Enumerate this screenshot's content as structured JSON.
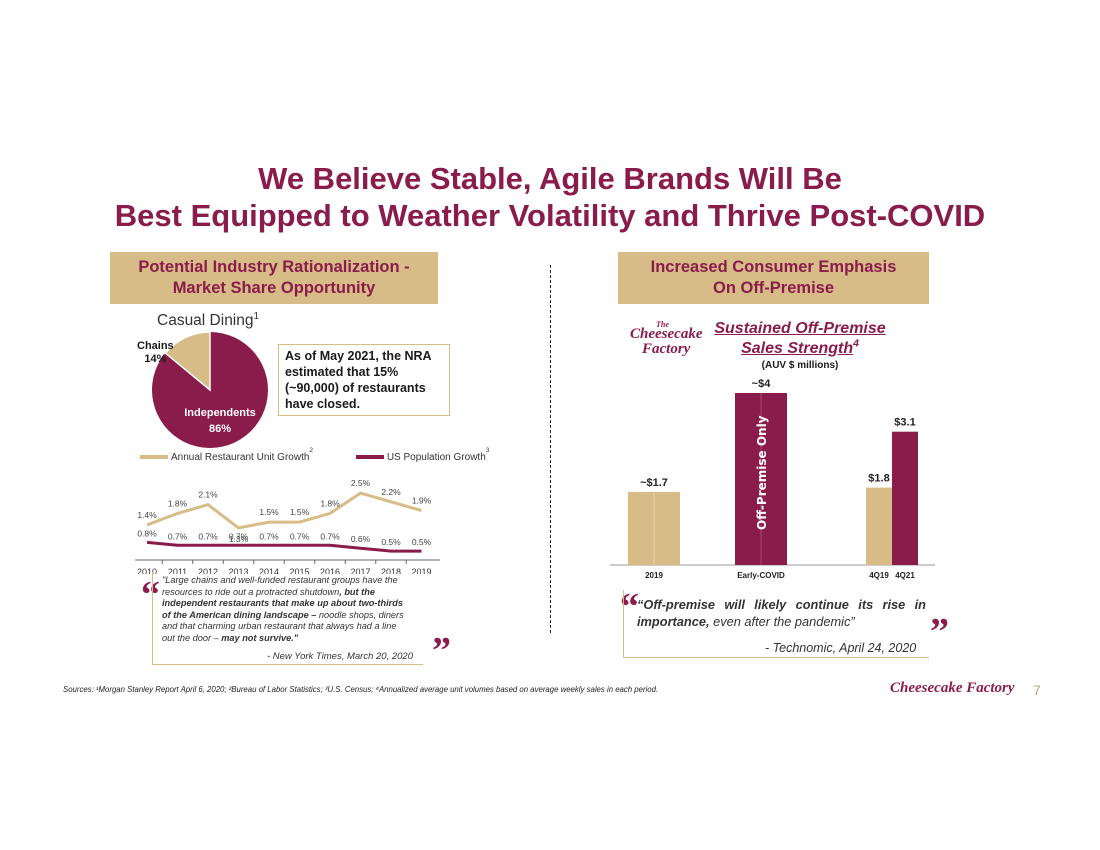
{
  "title_line1": "We Believe Stable, Agile Brands Will Be",
  "title_line2": "Best Equipped to Weather Volatility and Thrive Post-COVID",
  "left": {
    "banner_line1": "Potential Industry Rationalization -",
    "banner_line2": "Market Share Opportunity",
    "pie_title": "Casual Dining",
    "pie_title_sup": "1",
    "pie_label_chains": "Chains",
    "pie_label_chains_pct": "14%",
    "pie_label_independents": "Independents",
    "pie_label_independents_pct": "86%",
    "nra_text_line1": "As of May 2021, the NRA",
    "nra_text_line2": "estimated that 15%",
    "nra_text_line3": "(~90,000) of restaurants",
    "nra_text_line4": "have closed.",
    "legend1": "Annual Restaurant Unit Growth",
    "legend1_sup": "2",
    "legend2": "US Population Growth",
    "legend2_sup": "3",
    "quote_l1": "\"Large chains and well-funded restaurant groups have the",
    "quote_l2": "resources to ride out a protracted shutdown",
    "quote_l2b": ", but the",
    "quote_l3": "independent restaurants that make up about two-thirds",
    "quote_l4": "of the American dining landscape –",
    "quote_l4b": " noodle shops, diners",
    "quote_l5": "and that charming urban restaurant that always had a line",
    "quote_l6": "out the door –",
    "quote_l6b": " may not survive.\"",
    "quote_source": "- New York Times, March 20, 2020"
  },
  "right": {
    "banner_line1": "Increased Consumer Emphasis",
    "banner_line2": "On Off-Premise",
    "chart_title_line1": "Sustained Off-Premise",
    "chart_title_line2": "Sales Strength",
    "chart_title_sup": "4",
    "chart_subtitle": "(AUV $ millions)",
    "off_premise_label": "Off-Premise Only",
    "quote_l1a": "“Off-premise will likely continue its rise in",
    "quote_l2a": "importance,",
    "quote_l2b": " even after the pandemic”",
    "quote_source": "- Technomic, April 24, 2020"
  },
  "logo_top": "Cheesecake",
  "logo_bottom": "Factory",
  "logo_the": "The",
  "footer_logo": "Cheesecake Factory",
  "page_number": "7",
  "sources": "Sources: ¹Morgan Stanley Report April 6, 2020; ²Bureau of Labor Statistics; ³U.S. Census; ⁴Annualized average unit volumes based on average weekly sales in each period.",
  "colors": {
    "maroon": "#8a1c4c",
    "tan": "#d7bc87"
  },
  "chart_data": [
    {
      "type": "pie",
      "title": "Casual Dining",
      "categories": [
        "Chains",
        "Independents"
      ],
      "values": [
        14,
        86
      ]
    },
    {
      "type": "line",
      "categories": [
        "2010",
        "2011",
        "2012",
        "2013",
        "2014",
        "2015",
        "2016",
        "2017",
        "2018",
        "2019"
      ],
      "series": [
        {
          "name": "Annual Restaurant Unit Growth",
          "values": [
            1.4,
            1.8,
            2.1,
            1.3,
            1.5,
            1.5,
            1.8,
            2.5,
            2.2,
            1.9
          ],
          "labels": [
            "1.4%",
            "1.8%",
            "2.1%",
            "1.3%",
            "1.5%",
            "1.5%",
            "1.8%",
            "2.5%",
            "2.2%",
            "1.9%"
          ]
        },
        {
          "name": "US Population Growth",
          "values": [
            0.8,
            0.7,
            0.7,
            0.7,
            0.7,
            0.7,
            0.7,
            0.6,
            0.5,
            0.5
          ],
          "labels": [
            "0.8%",
            "0.7%",
            "0.7%",
            "0.7%",
            "0.7%",
            "0.7%",
            "0.7%",
            "0.6%",
            "0.5%",
            "0.5%"
          ]
        }
      ]
    },
    {
      "type": "bar",
      "title": "Sustained Off-Premise Sales Strength",
      "ylabel": "(AUV $ millions)",
      "bars": [
        {
          "category": "2019",
          "value": 1.7,
          "label": "~$1.7",
          "color": "#d7bc87"
        },
        {
          "category": "Early-COVID",
          "value": 4,
          "label": "~$4",
          "color": "#8a1c4c"
        },
        {
          "category": "4Q19",
          "value": 1.8,
          "label": "$1.8",
          "color": "#d7bc87"
        },
        {
          "category": "4Q21",
          "value": 3.1,
          "label": "$3.1",
          "color": "#8a1c4c"
        }
      ]
    }
  ]
}
